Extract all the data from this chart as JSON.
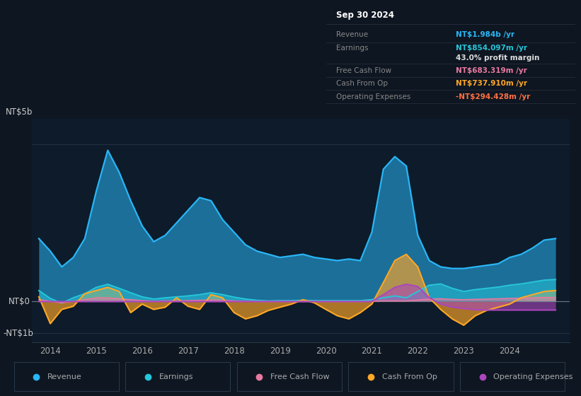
{
  "bg_color": "#0e1621",
  "chart_bg": "#0d1b2a",
  "ylim": [
    -1.3,
    5.8
  ],
  "xlim_start": 2013.6,
  "xlim_end": 2025.3,
  "xticks": [
    2014,
    2015,
    2016,
    2017,
    2018,
    2019,
    2020,
    2021,
    2022,
    2023,
    2024
  ],
  "ylabel_top": "NT$5b",
  "ylabel_zero": "NT$0",
  "ylabel_bottom": "-NT$1b",
  "ytick_vals": [
    5.0,
    0.0,
    -1.0
  ],
  "colors": {
    "revenue": "#29b6f6",
    "earnings": "#26c6da",
    "free_cash_flow": "#e879a0",
    "cash_from_op": "#ffa726",
    "operating_expenses": "#ab47bc"
  },
  "info_box": {
    "date": "Sep 30 2024",
    "rows": [
      {
        "label": "Revenue",
        "value": "NT$1.984b /yr",
        "label_color": "#888888",
        "value_color": "#29b6f6",
        "bold": true,
        "indent": false
      },
      {
        "label": "Earnings",
        "value": "NT$854.097m /yr",
        "label_color": "#888888",
        "value_color": "#26c6da",
        "bold": true,
        "indent": false
      },
      {
        "label": "",
        "value": "43.0% profit margin",
        "label_color": "#888888",
        "value_color": "#dddddd",
        "bold": true,
        "indent": true
      },
      {
        "label": "Free Cash Flow",
        "value": "NT$683.319m /yr",
        "label_color": "#888888",
        "value_color": "#e879a0",
        "bold": true,
        "indent": false
      },
      {
        "label": "Cash From Op",
        "value": "NT$737.910m /yr",
        "label_color": "#888888",
        "value_color": "#ffa726",
        "bold": true,
        "indent": false
      },
      {
        "label": "Operating Expenses",
        "value": "-NT$294.428m /yr",
        "label_color": "#888888",
        "value_color": "#ff7043",
        "bold": true,
        "indent": false
      }
    ]
  },
  "legend": [
    {
      "label": "Revenue",
      "color": "#29b6f6"
    },
    {
      "label": "Earnings",
      "color": "#26c6da"
    },
    {
      "label": "Free Cash Flow",
      "color": "#e879a0"
    },
    {
      "label": "Cash From Op",
      "color": "#ffa726"
    },
    {
      "label": "Operating Expenses",
      "color": "#ab47bc"
    }
  ],
  "x": [
    2013.75,
    2014.0,
    2014.25,
    2014.5,
    2014.75,
    2015.0,
    2015.25,
    2015.5,
    2015.75,
    2016.0,
    2016.25,
    2016.5,
    2016.75,
    2017.0,
    2017.25,
    2017.5,
    2017.75,
    2018.0,
    2018.25,
    2018.5,
    2018.75,
    2019.0,
    2019.25,
    2019.5,
    2019.75,
    2020.0,
    2020.25,
    2020.5,
    2020.75,
    2021.0,
    2021.25,
    2021.5,
    2021.75,
    2022.0,
    2022.25,
    2022.5,
    2022.75,
    2023.0,
    2023.25,
    2023.5,
    2023.75,
    2024.0,
    2024.25,
    2024.5,
    2024.75,
    2025.0
  ],
  "revenue": [
    2.0,
    1.6,
    1.1,
    1.4,
    2.0,
    3.5,
    4.8,
    4.1,
    3.2,
    2.4,
    1.9,
    2.1,
    2.5,
    2.9,
    3.3,
    3.2,
    2.6,
    2.2,
    1.8,
    1.6,
    1.5,
    1.4,
    1.45,
    1.5,
    1.4,
    1.35,
    1.3,
    1.35,
    1.3,
    2.2,
    4.2,
    4.6,
    4.3,
    2.1,
    1.3,
    1.1,
    1.05,
    1.05,
    1.1,
    1.15,
    1.2,
    1.4,
    1.5,
    1.7,
    1.95,
    2.0
  ],
  "earnings": [
    0.35,
    0.1,
    -0.05,
    0.12,
    0.25,
    0.45,
    0.55,
    0.42,
    0.28,
    0.15,
    0.08,
    0.12,
    0.15,
    0.18,
    0.22,
    0.28,
    0.22,
    0.14,
    0.08,
    0.04,
    0.02,
    0.03,
    0.03,
    0.04,
    0.03,
    0.03,
    0.03,
    0.03,
    0.03,
    0.06,
    0.12,
    0.18,
    0.12,
    0.32,
    0.52,
    0.56,
    0.42,
    0.32,
    0.38,
    0.42,
    0.46,
    0.52,
    0.56,
    0.62,
    0.68,
    0.7
  ],
  "free_cash_flow": [
    0.06,
    0.01,
    -0.04,
    0.01,
    0.06,
    0.12,
    0.12,
    0.09,
    0.06,
    0.03,
    0.01,
    0.02,
    0.02,
    0.03,
    0.04,
    0.05,
    0.04,
    0.02,
    0.01,
    0.0,
    0.0,
    0.0,
    0.0,
    0.0,
    0.0,
    0.0,
    0.0,
    0.0,
    0.0,
    0.01,
    0.02,
    0.02,
    0.02,
    0.05,
    0.08,
    0.09,
    0.07,
    0.06,
    0.07,
    0.08,
    0.09,
    0.1,
    0.11,
    0.12,
    0.13,
    0.13
  ],
  "cash_from_op": [
    0.15,
    -0.7,
    -0.25,
    -0.15,
    0.25,
    0.35,
    0.45,
    0.32,
    -0.35,
    -0.08,
    -0.25,
    -0.18,
    0.12,
    -0.15,
    -0.25,
    0.22,
    0.12,
    -0.35,
    -0.55,
    -0.45,
    -0.28,
    -0.18,
    -0.08,
    0.06,
    -0.04,
    -0.25,
    -0.45,
    -0.55,
    -0.35,
    -0.08,
    0.6,
    1.3,
    1.5,
    1.1,
    0.12,
    -0.25,
    -0.55,
    -0.75,
    -0.45,
    -0.28,
    -0.18,
    -0.08,
    0.12,
    0.22,
    0.32,
    0.35
  ],
  "operating_expenses": [
    0.0,
    0.0,
    0.0,
    0.0,
    0.0,
    0.0,
    0.0,
    0.0,
    0.0,
    0.0,
    0.0,
    0.0,
    0.0,
    0.0,
    0.0,
    0.0,
    0.0,
    0.0,
    0.0,
    0.0,
    0.0,
    0.0,
    0.0,
    0.0,
    0.0,
    0.0,
    0.0,
    0.0,
    0.0,
    0.0,
    0.22,
    0.45,
    0.55,
    0.48,
    0.12,
    -0.08,
    -0.18,
    -0.22,
    -0.26,
    -0.27,
    -0.27,
    -0.27,
    -0.27,
    -0.27,
    -0.27,
    -0.27
  ]
}
